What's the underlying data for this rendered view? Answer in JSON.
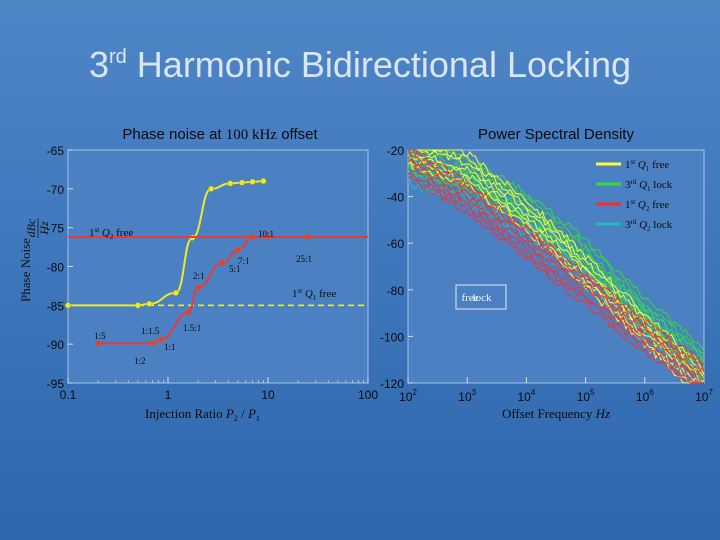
{
  "slide": {
    "title_main": "Harmonic Bidirectional Locking",
    "title_num": "3",
    "title_sup": "rd"
  },
  "chart_data": [
    {
      "type": "scatter",
      "title": "Phase noise at 100 kHz  offset",
      "title_pre": "Phase noise at",
      "title_mid": "100 kHz",
      "title_post": "offset",
      "xlabel": "Injection Ratio P2 / P1",
      "ylabel": "Phase Noise dBc/Hz",
      "ylabel_text": "Phase Noise",
      "ylabel_num": "dBc",
      "ylabel_den": "Hz",
      "xscale": "log",
      "xlim": [
        0.1,
        100
      ],
      "ylim": [
        -95,
        -65
      ],
      "xticks": [
        "0.1",
        "1",
        "10",
        "100"
      ],
      "yticks": [
        "-65",
        "-70",
        "-75",
        "-80",
        "-85",
        "-90",
        "-95"
      ],
      "grid": false,
      "series": [
        {
          "name": "yellow",
          "color": "#e8ec2a",
          "x": [
            0.1,
            0.5,
            0.65,
            1.2,
            1.75,
            2.7,
            4.2,
            5.5,
            7.0,
            9.0
          ],
          "y": [
            -85.0,
            -85.0,
            -84.8,
            -83.4,
            -76.3,
            -70.0,
            -69.3,
            -69.2,
            -69.1,
            -69.0
          ],
          "baseline": -85.0,
          "baseline_label": "1st Q1 free"
        },
        {
          "name": "red",
          "color": "#e83a3a",
          "x": [
            0.2,
            0.7,
            0.85,
            1.6,
            2.0,
            3.5,
            5.0,
            7.0,
            10.0,
            25.0
          ],
          "y": [
            -89.9,
            -89.9,
            -89.4,
            -85.9,
            -82.7,
            -79.5,
            -77.9,
            -76.2,
            -76.2,
            -76.2
          ],
          "baseline": -76.2,
          "baseline_label": "1st Q2 free"
        }
      ],
      "annotations": [
        "10:1",
        "7:1",
        "5:1",
        "25:1",
        "2:1",
        "1:5",
        "1:1.5",
        "1.5:1",
        "1:1",
        "1:2"
      ],
      "baseline_labels": [
        "1st Q2 free",
        "1st Q1 free"
      ]
    },
    {
      "type": "line",
      "title": "Power Spectral Density",
      "xlabel": "Offset Frequency Hz",
      "xlabel_text": "Offset Frequency",
      "xlabel_unit": "Hz",
      "xscale": "log",
      "xlim": [
        100,
        10000000
      ],
      "ylim": [
        -120,
        -20
      ],
      "xticks": [
        "10^2",
        "10^3",
        "10^4",
        "10^5",
        "10^6",
        "10^7"
      ],
      "yticks": [
        "-20",
        "-40",
        "-60",
        "-80",
        "-100",
        "-120"
      ],
      "grid": false,
      "legend_position": "top-right",
      "series": [
        {
          "name": "1st Q1 free",
          "color": "#ffff33",
          "x": [
            2,
            3,
            4,
            5,
            6,
            7
          ],
          "y": [
            -20,
            -28,
            -48,
            -72,
            -97,
            -120
          ]
        },
        {
          "name": "3rd Q1 lock",
          "color": "#33dd33",
          "x": [
            2,
            3,
            4,
            5,
            6,
            7
          ],
          "y": [
            -22,
            -30,
            -45,
            -65,
            -90,
            -112
          ]
        },
        {
          "name": "1st Q2 free",
          "color": "#ff2a2a",
          "x": [
            2,
            3,
            4,
            5,
            6,
            7
          ],
          "y": [
            -25,
            -40,
            -60,
            -80,
            -100,
            -118
          ]
        },
        {
          "name": "3rd Q2 lock",
          "color": "#22bbbb",
          "x": [
            2,
            3,
            4,
            5,
            6,
            7
          ],
          "y": [
            -28,
            -36,
            -52,
            -72,
            -94,
            -116
          ]
        }
      ],
      "legend": [
        {
          "num": "1",
          "sup": "st",
          "q": "Q",
          "sub": "1",
          "state": "free"
        },
        {
          "num": "3",
          "sup": "rd",
          "q": "Q",
          "sub": "1",
          "state": "lock"
        },
        {
          "num": "1",
          "sup": "st",
          "q": "Q",
          "sub": "2",
          "state": "free"
        },
        {
          "num": "3",
          "sup": "rd",
          "q": "Q",
          "sub": "2",
          "state": "lock"
        }
      ]
    }
  ]
}
